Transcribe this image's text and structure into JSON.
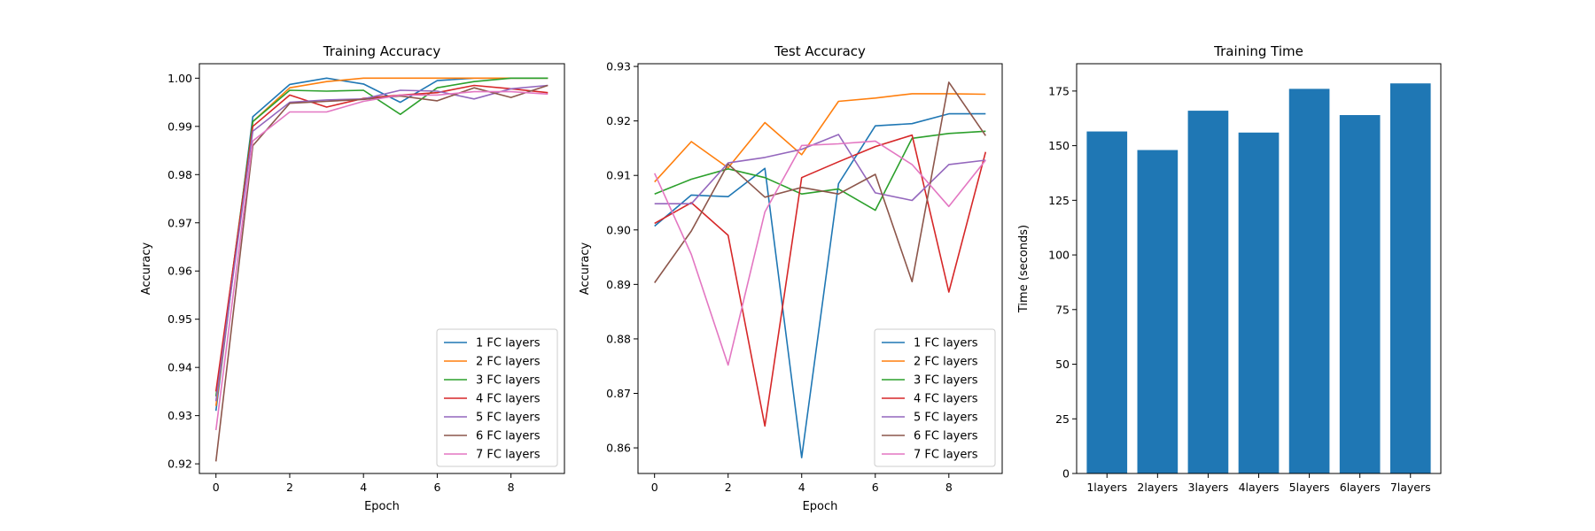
{
  "chart_data": [
    {
      "type": "line",
      "title": "Training Accuracy",
      "xlabel": "Epoch",
      "ylabel": "Accuracy",
      "xlim": [
        -0.45,
        9.45
      ],
      "ylim": [
        0.918,
        1.003
      ],
      "xticks": [
        0,
        2,
        4,
        6,
        8
      ],
      "yticks": [
        0.92,
        0.93,
        0.94,
        0.95,
        0.96,
        0.97,
        0.98,
        0.99,
        1.0
      ],
      "ytick_labels": [
        "0.92",
        "0.93",
        "0.94",
        "0.95",
        "0.96",
        "0.97",
        "0.98",
        "0.99",
        "1.00"
      ],
      "legend": "lower-right",
      "x": [
        0,
        1,
        2,
        3,
        4,
        5,
        6,
        7,
        8,
        9
      ],
      "series": [
        {
          "name": "1 FC layers",
          "color": "#1f77b4",
          "values": [
            0.931,
            0.992,
            0.9987,
            1.0,
            0.9988,
            0.995,
            0.9995,
            1.0,
            1.0,
            1.0
          ]
        },
        {
          "name": "2 FC layers",
          "color": "#ff7f0e",
          "values": [
            0.932,
            0.991,
            0.998,
            0.9993,
            1.0,
            1.0,
            1.0,
            1.0,
            1.0,
            1.0
          ]
        },
        {
          "name": "3 FC layers",
          "color": "#2ca02c",
          "values": [
            0.934,
            0.991,
            0.9975,
            0.9973,
            0.9975,
            0.9925,
            0.998,
            0.9993,
            1.0,
            1.0
          ]
        },
        {
          "name": "4 FC layers",
          "color": "#d62728",
          "values": [
            0.935,
            0.99,
            0.9965,
            0.994,
            0.9958,
            0.9965,
            0.997,
            0.9985,
            0.9978,
            0.997
          ]
        },
        {
          "name": "5 FC layers",
          "color": "#9467bd",
          "values": [
            0.933,
            0.989,
            0.995,
            0.9955,
            0.9957,
            0.9975,
            0.9973,
            0.9957,
            0.9978,
            0.9985
          ]
        },
        {
          "name": "6 FC layers",
          "color": "#8c564b",
          "values": [
            0.9205,
            0.986,
            0.9948,
            0.9952,
            0.9956,
            0.9963,
            0.9953,
            0.998,
            0.996,
            0.9985
          ]
        },
        {
          "name": "7 FC layers",
          "color": "#e377c2",
          "values": [
            0.927,
            0.987,
            0.993,
            0.993,
            0.9952,
            0.9965,
            0.9965,
            0.9972,
            0.9972,
            0.9967
          ]
        }
      ]
    },
    {
      "type": "line",
      "title": "Test Accuracy",
      "xlabel": "Epoch",
      "ylabel": "Accuracy",
      "xlim": [
        -0.45,
        9.45
      ],
      "ylim": [
        0.8553,
        0.9305
      ],
      "xticks": [
        0,
        2,
        4,
        6,
        8
      ],
      "yticks": [
        0.86,
        0.87,
        0.88,
        0.89,
        0.9,
        0.91,
        0.92,
        0.93
      ],
      "ytick_labels": [
        "0.86",
        "0.87",
        "0.88",
        "0.89",
        "0.90",
        "0.91",
        "0.92",
        "0.93"
      ],
      "legend": "lower-right",
      "x": [
        0,
        1,
        2,
        3,
        4,
        5,
        6,
        7,
        8,
        9
      ],
      "series": [
        {
          "name": "1 FC layers",
          "color": "#1f77b4",
          "values": [
            0.9007,
            0.9064,
            0.9061,
            0.9113,
            0.8582,
            0.9085,
            0.9191,
            0.9195,
            0.9213,
            0.9213
          ]
        },
        {
          "name": "2 FC layers",
          "color": "#ff7f0e",
          "values": [
            0.9088,
            0.9162,
            0.9114,
            0.9197,
            0.9138,
            0.9236,
            0.9242,
            0.925,
            0.925,
            0.9249
          ]
        },
        {
          "name": "3 FC layers",
          "color": "#2ca02c",
          "values": [
            0.9066,
            0.9093,
            0.9112,
            0.9096,
            0.9066,
            0.9075,
            0.9036,
            0.9168,
            0.9177,
            0.9181
          ]
        },
        {
          "name": "4 FC layers",
          "color": "#d62728",
          "values": [
            0.9012,
            0.905,
            0.899,
            0.864,
            0.9096,
            0.9125,
            0.9153,
            0.9174,
            0.8886,
            0.9143
          ]
        },
        {
          "name": "5 FC layers",
          "color": "#9467bd",
          "values": [
            0.9048,
            0.9048,
            0.9123,
            0.9133,
            0.9148,
            0.9175,
            0.9068,
            0.9054,
            0.912,
            0.9128
          ]
        },
        {
          "name": "6 FC layers",
          "color": "#8c564b",
          "values": [
            0.8903,
            0.8998,
            0.9121,
            0.906,
            0.9078,
            0.9066,
            0.9102,
            0.8905,
            0.9271,
            0.9173
          ]
        },
        {
          "name": "7 FC layers",
          "color": "#e377c2",
          "values": [
            0.9104,
            0.8955,
            0.8752,
            0.9033,
            0.9155,
            0.9158,
            0.9163,
            0.912,
            0.9043,
            0.9128
          ]
        }
      ]
    },
    {
      "type": "bar",
      "title": "Training Time",
      "xlabel": "",
      "ylabel": "Time (seconds)",
      "ylim": [
        0,
        187.5
      ],
      "yticks": [
        0,
        25,
        50,
        75,
        100,
        125,
        150,
        175
      ],
      "ytick_labels": [
        "0",
        "25",
        "50",
        "75",
        "100",
        "125",
        "150",
        "175"
      ],
      "categories": [
        "1layers",
        "2layers",
        "3layers",
        "4layers",
        "5layers",
        "6layers",
        "7layers"
      ],
      "values": [
        156.5,
        148,
        166,
        156,
        176,
        164,
        178.5
      ],
      "color": "#1f77b4"
    }
  ]
}
